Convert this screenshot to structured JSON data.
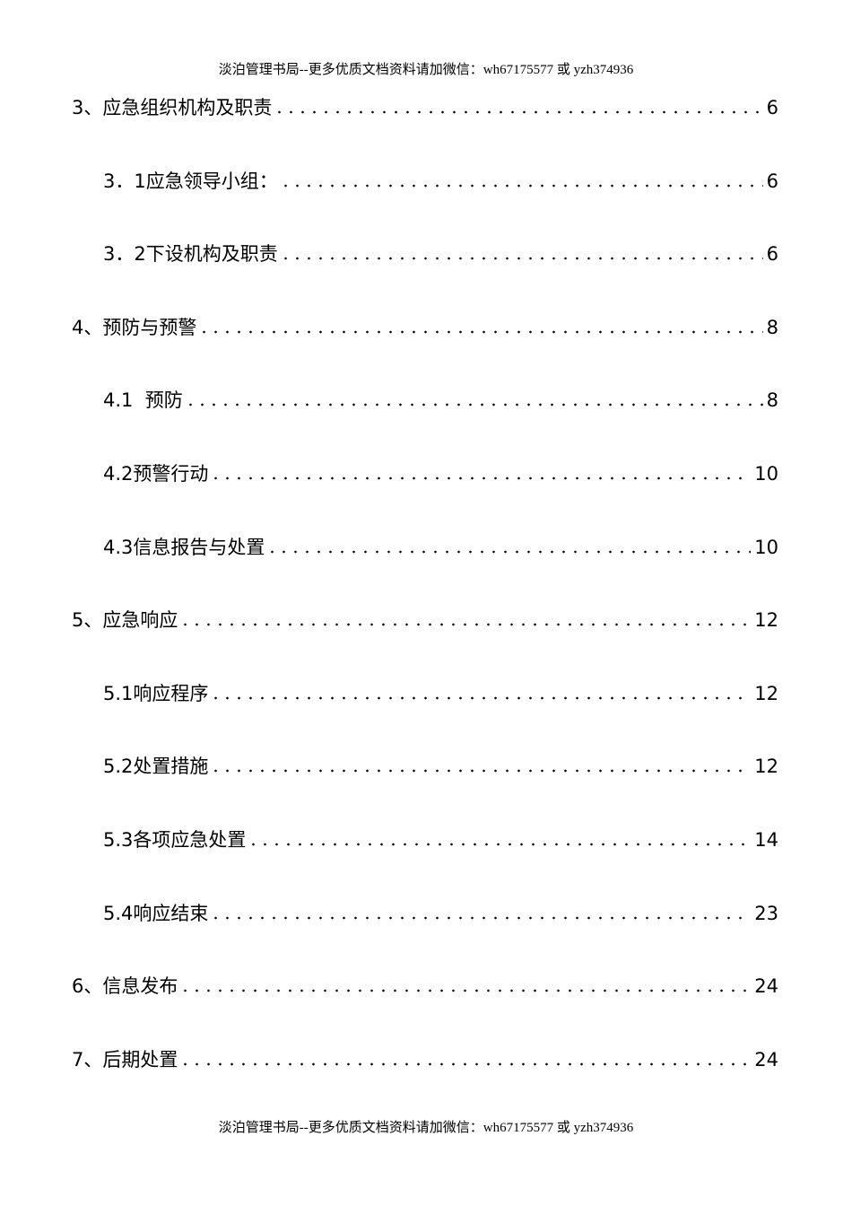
{
  "header": "淡泊管理书局--更多优质文档资料请加微信：wh67175577 或 yzh374936",
  "footer": "淡泊管理书局--更多优质文档资料请加微信：wh67175577 或 yzh374936",
  "toc": [
    {
      "title": "3、应急组织机构及职责",
      "page": "6",
      "level": 1
    },
    {
      "title": "3．1应急领导小组：",
      "page": "6",
      "level": 2
    },
    {
      "title": "3．2下设机构及职责",
      "page": "6",
      "level": 2
    },
    {
      "title": "4、预防与预警",
      "page": "8",
      "level": 1
    },
    {
      "title": "4.1  预防",
      "page": "8",
      "level": 2
    },
    {
      "title": "4.2预警行动",
      "page": "10",
      "level": 2
    },
    {
      "title": "4.3信息报告与处置",
      "page": "10",
      "level": 2
    },
    {
      "title": "5、应急响应",
      "page": "12",
      "level": 1
    },
    {
      "title": "5.1响应程序",
      "page": "12",
      "level": 2
    },
    {
      "title": "5.2处置措施",
      "page": "12",
      "level": 2
    },
    {
      "title": "5.3各项应急处置",
      "page": "14",
      "level": 2
    },
    {
      "title": "5.4响应结束",
      "page": "23",
      "level": 2
    },
    {
      "title": "6、信息发布",
      "page": "24",
      "level": 1
    },
    {
      "title": "7、后期处置",
      "page": "24",
      "level": 1
    }
  ]
}
